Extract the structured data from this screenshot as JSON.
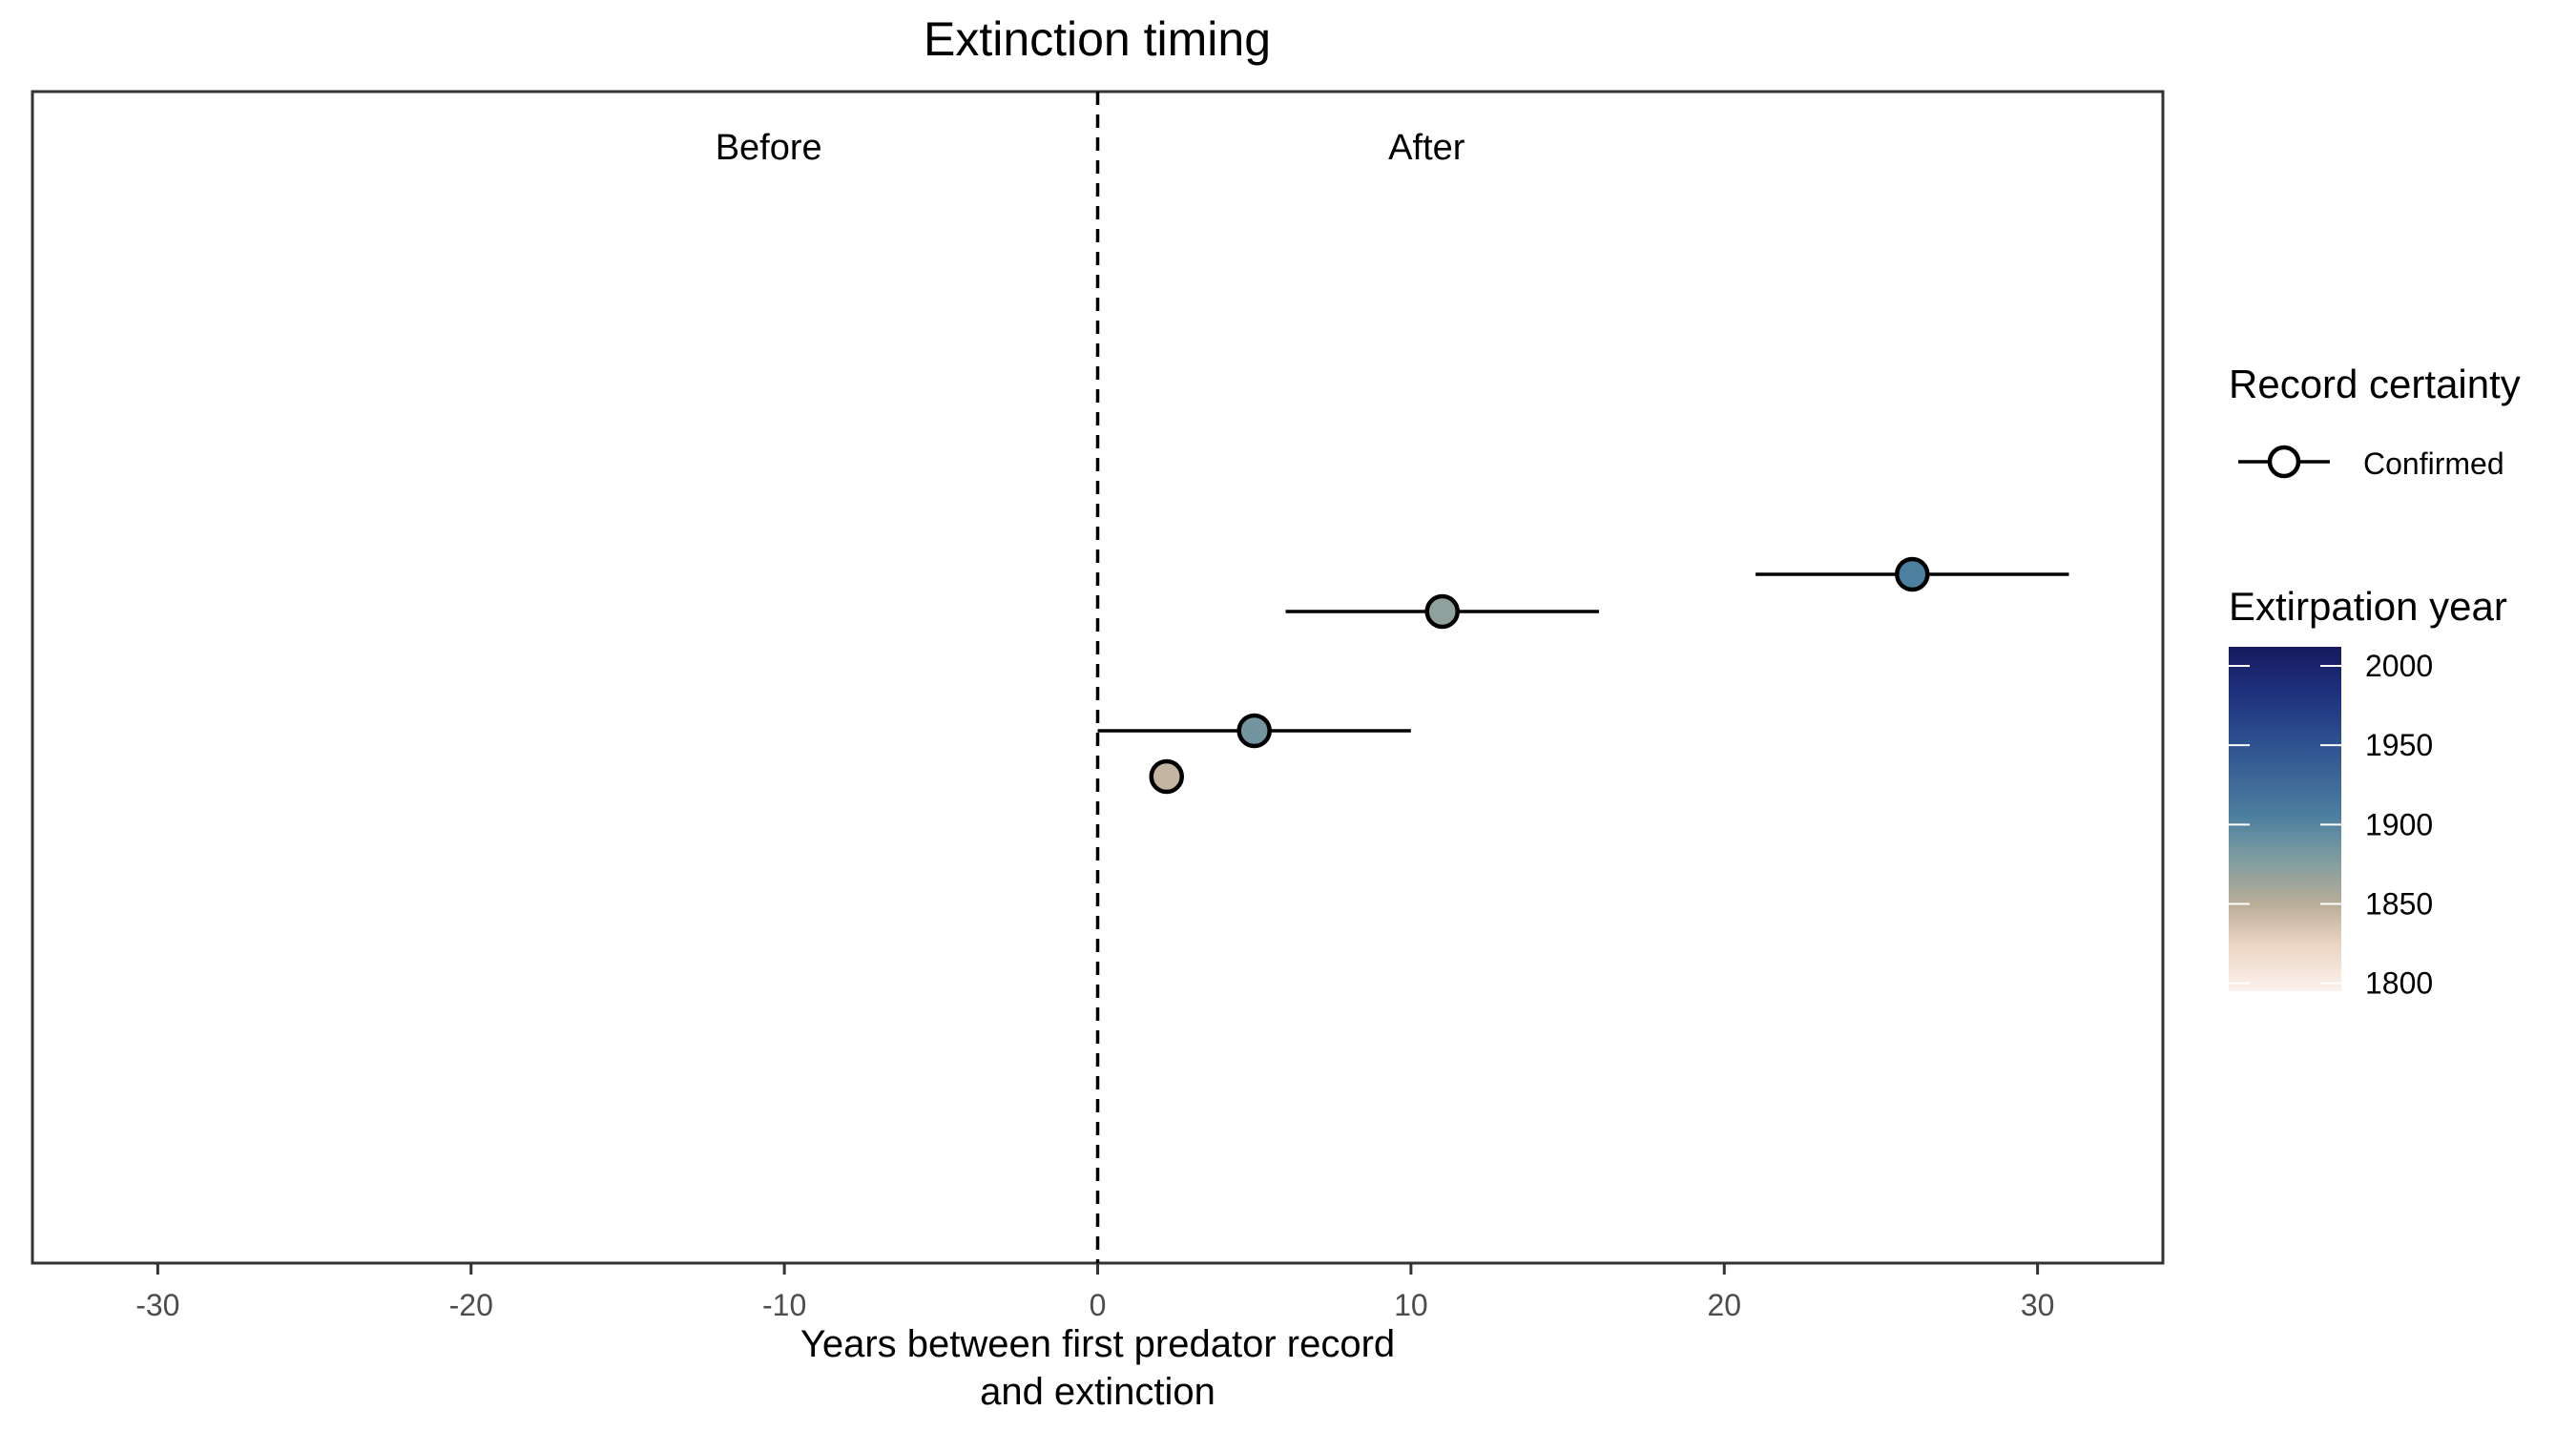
{
  "chart_data": {
    "type": "scatter",
    "title": "Extinction timing",
    "xlabel": "Years between first predator record\nand extinction",
    "ylabel": "",
    "xlim": [
      -34,
      34
    ],
    "xticks": [
      -30,
      -20,
      -10,
      0,
      10,
      20,
      30
    ],
    "grid": false,
    "reference_line": {
      "x": 0,
      "style": "dashed"
    },
    "annotations": [
      {
        "text": "Before",
        "x": -10.5
      },
      {
        "text": "After",
        "x": 10.5
      }
    ],
    "series": [
      {
        "name": "Confirmed",
        "points": [
          {
            "x": 26.0,
            "xmin": 21.0,
            "xmax": 31.0,
            "extirpation_year": 1905
          },
          {
            "x": 11.0,
            "xmin": 6.0,
            "xmax": 16.0,
            "extirpation_year": 1870
          },
          {
            "x": 5.0,
            "xmin": 0.0,
            "xmax": 10.0,
            "extirpation_year": 1885
          },
          {
            "x": 2.2,
            "extirpation_year": 1845
          }
        ]
      }
    ],
    "legend": {
      "placement": "right",
      "shape_title": "Record certainty",
      "shape_items": [
        "Confirmed"
      ],
      "color_title": "Extirpation year",
      "color_ticks": [
        2000,
        1950,
        1900,
        1850,
        1800
      ],
      "color_range": [
        1795,
        2012
      ],
      "color_stops": [
        {
          "year": 1795,
          "color": "#fdf1ee"
        },
        {
          "year": 1825,
          "color": "#ead4c2"
        },
        {
          "year": 1850,
          "color": "#b9ad98"
        },
        {
          "year": 1880,
          "color": "#7b9ba0"
        },
        {
          "year": 1905,
          "color": "#4d7f9f"
        },
        {
          "year": 1950,
          "color": "#2f5290"
        },
        {
          "year": 1985,
          "color": "#1d2f7c"
        },
        {
          "year": 2012,
          "color": "#171a5e"
        }
      ]
    }
  }
}
